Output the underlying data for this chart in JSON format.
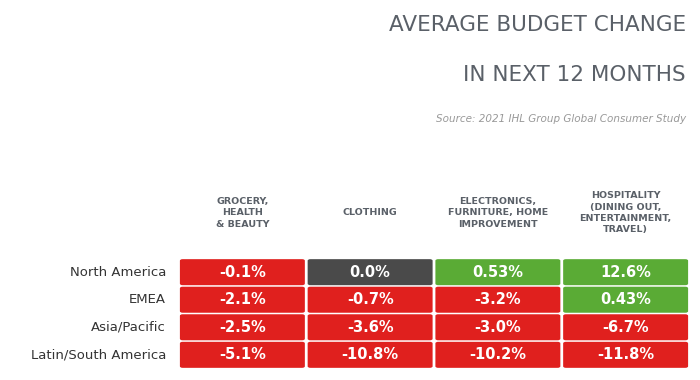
{
  "title_line1": "AVERAGE BUDGET CHANGE",
  "title_line2": "IN NEXT 12 MONTHS",
  "source": "Source: 2021 IHL Group Global Consumer Study",
  "col_headers": [
    "GROCERY,\nHEALTH\n& BEAUTY",
    "CLOTHING",
    "ELECTRONICS,\nFURNITURE, HOME\nIMPROVEMENT",
    "HOSPITALITY\n(DINING OUT,\nENTERTAINMENT,\nTRAVEL)"
  ],
  "row_labels": [
    "North America",
    "EMEA",
    "Asia/Pacific",
    "Latin/South America"
  ],
  "values": [
    [
      "-0.1%",
      "0.0%",
      "0.53%",
      "12.6%"
    ],
    [
      "-2.1%",
      "-0.7%",
      "-3.2%",
      "0.43%"
    ],
    [
      "-2.5%",
      "-3.6%",
      "-3.0%",
      "-6.7%"
    ],
    [
      "-5.1%",
      "-10.8%",
      "-10.2%",
      "-11.8%"
    ]
  ],
  "colors": [
    [
      "#e0201e",
      "#4a4a4a",
      "#5aab35",
      "#5aab35"
    ],
    [
      "#e0201e",
      "#e0201e",
      "#e0201e",
      "#5aab35"
    ],
    [
      "#e0201e",
      "#e0201e",
      "#e0201e",
      "#e0201e"
    ],
    [
      "#e0201e",
      "#e0201e",
      "#e0201e",
      "#e0201e"
    ]
  ],
  "bg_color": "#ffffff",
  "title_color": "#5a6068",
  "source_color": "#999999",
  "row_label_color": "#333333",
  "col_header_color": "#5a6068",
  "cell_text_color": "#ffffff",
  "title_fontsize": 15.5,
  "source_fontsize": 7.5,
  "col_header_fontsize": 6.8,
  "row_label_fontsize": 9.5,
  "cell_fontsize": 10.5
}
